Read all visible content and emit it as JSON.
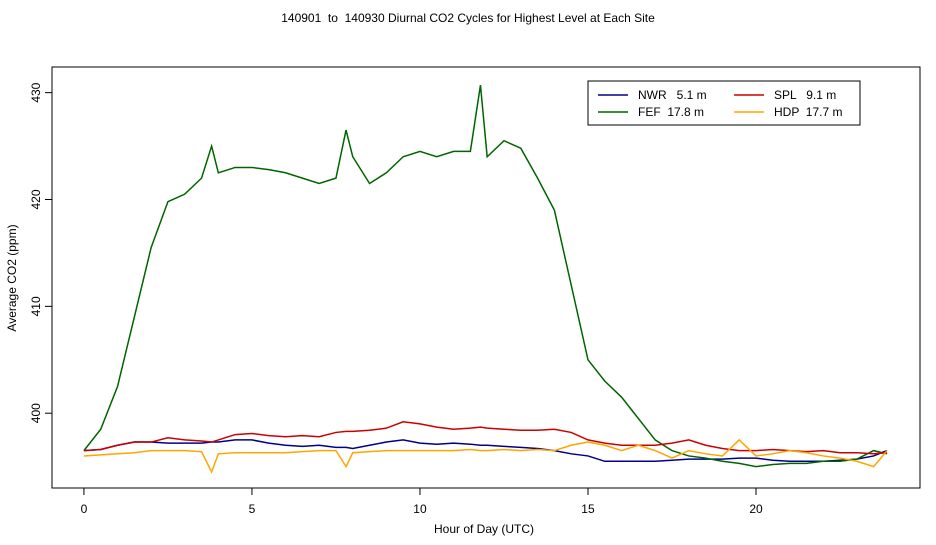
{
  "chart_data": {
    "type": "line",
    "title": "140901  to  140930 Diurnal CO2 Cycles for Highest Level at Each Site",
    "x_label": "Hour of Day (UTC)",
    "y_label": "Average CO2 (ppm)",
    "xlim": [
      -0.95,
      24.88
    ],
    "ylim": [
      393.0,
      432.4
    ],
    "xticks": [
      0,
      5,
      10,
      15,
      20
    ],
    "yticks": [
      400,
      410,
      420,
      430
    ],
    "legend": "top-right",
    "x": [
      0,
      0.5,
      1,
      1.5,
      2,
      2.5,
      3,
      3.5,
      3.8,
      4,
      4.5,
      5,
      5.5,
      6,
      6.5,
      7,
      7.5,
      7.8,
      8,
      8.5,
      9,
      9.5,
      10,
      10.5,
      11,
      11.5,
      11.8,
      12,
      12.5,
      13,
      13.5,
      14,
      14.5,
      15,
      15.5,
      16,
      16.5,
      17,
      17.5,
      18,
      18.5,
      19,
      19.5,
      20,
      20.5,
      21,
      21.5,
      22,
      22.5,
      23,
      23.5,
      23.9
    ],
    "series": [
      {
        "name": "NWR   5.1 m",
        "color": "#00008b",
        "values": [
          396.5,
          396.6,
          397,
          397.3,
          397.3,
          397.2,
          397.2,
          397.2,
          397.3,
          397.3,
          397.5,
          397.5,
          397.2,
          397,
          396.9,
          397,
          396.8,
          396.8,
          396.7,
          397,
          397.3,
          397.5,
          397.2,
          397.1,
          397.2,
          397.1,
          397,
          397,
          396.9,
          396.8,
          396.7,
          396.5,
          396.2,
          396,
          395.5,
          395.5,
          395.5,
          395.5,
          395.6,
          395.7,
          395.7,
          395.7,
          395.8,
          395.8,
          395.6,
          395.5,
          395.5,
          395.5,
          395.6,
          395.7,
          396,
          396.5
        ]
      },
      {
        "name": "FEF  17.8 m",
        "color": "#006400",
        "values": [
          396.5,
          398.5,
          402.5,
          409,
          415.5,
          419.8,
          420.5,
          422,
          425,
          422.5,
          423,
          423,
          422.8,
          422.5,
          422,
          421.5,
          422,
          426.5,
          424,
          421.5,
          422.5,
          424,
          424.5,
          424,
          424.5,
          424.5,
          430.7,
          424,
          425.5,
          424.8,
          422,
          419,
          412,
          405,
          403,
          401.5,
          399.5,
          397.5,
          396.5,
          396,
          395.8,
          395.5,
          395.3,
          395,
          395.2,
          395.3,
          395.3,
          395.5,
          395.5,
          395.7,
          396.5,
          396.2
        ]
      },
      {
        "name": "SPL   9.1 m",
        "color": "#cc0000",
        "values": [
          396.5,
          396.6,
          397,
          397.3,
          397.3,
          397.7,
          397.5,
          397.4,
          397.3,
          397.5,
          398,
          398.1,
          397.9,
          397.8,
          397.9,
          397.8,
          398.2,
          398.3,
          398.3,
          398.4,
          398.6,
          399.2,
          399,
          398.7,
          398.5,
          398.6,
          398.7,
          398.6,
          398.5,
          398.4,
          398.4,
          398.5,
          398.2,
          397.5,
          397.2,
          397,
          397,
          397,
          397.2,
          397.5,
          397,
          396.7,
          396.5,
          396.5,
          396.6,
          396.5,
          396.4,
          396.5,
          396.3,
          396.3,
          396.2,
          396.3
        ]
      },
      {
        "name": "HDP  17.7 m",
        "color": "#ffa500",
        "values": [
          396,
          396.1,
          396.2,
          396.3,
          396.5,
          396.5,
          396.5,
          396.4,
          394.5,
          396.2,
          396.3,
          396.3,
          396.3,
          396.3,
          396.4,
          396.5,
          396.5,
          395,
          396.3,
          396.4,
          396.5,
          396.5,
          396.5,
          396.5,
          396.5,
          396.6,
          396.5,
          396.5,
          396.6,
          396.5,
          396.6,
          396.5,
          397,
          397.3,
          397,
          396.5,
          397,
          396.5,
          395.8,
          396.5,
          396.2,
          396,
          397.5,
          396,
          396.2,
          396.5,
          396.3,
          396,
          395.8,
          395.5,
          395,
          396.5
        ]
      }
    ]
  }
}
